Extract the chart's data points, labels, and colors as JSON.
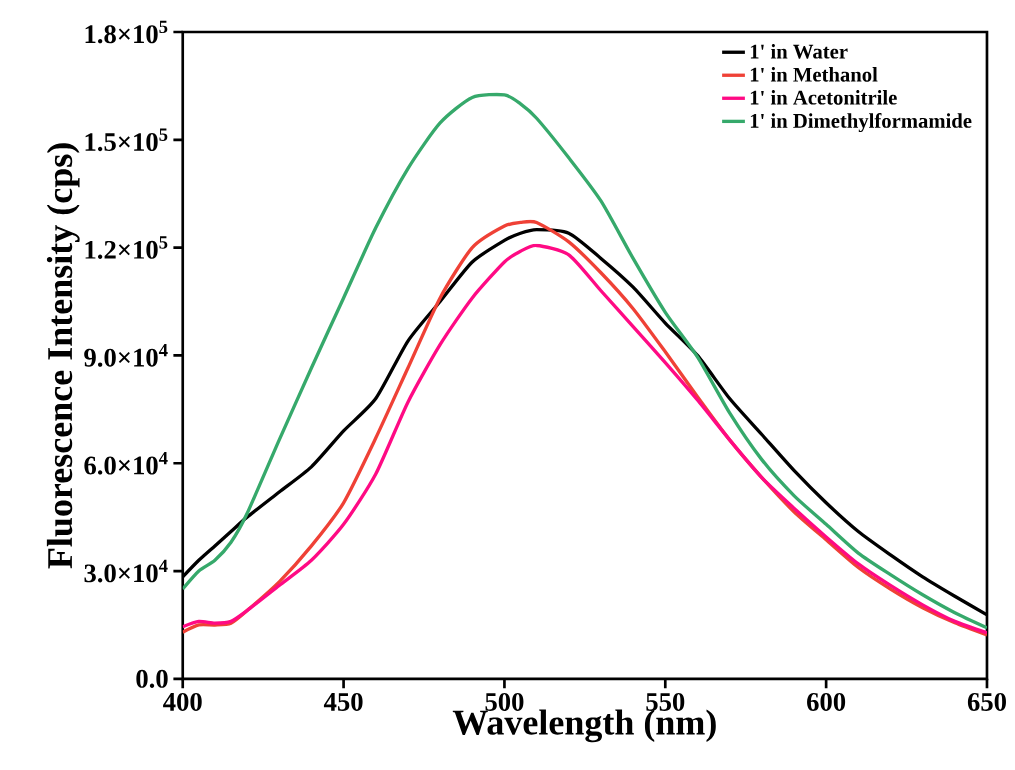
{
  "chart_data": {
    "type": "line",
    "xlabel": "Wavelength (nm)",
    "ylabel": "Fluorescence Intensity (cps)",
    "x": [
      400,
      405,
      410,
      415,
      420,
      430,
      440,
      450,
      460,
      470,
      480,
      490,
      500,
      505,
      510,
      520,
      530,
      540,
      550,
      560,
      570,
      580,
      590,
      600,
      610,
      620,
      630,
      640,
      650
    ],
    "series": [
      {
        "name": "1' in Water",
        "color": "#000000",
        "values": [
          28400,
          33000,
          37000,
          41000,
          45000,
          52000,
          59000,
          69000,
          78000,
          94000,
          105000,
          116000,
          122000,
          124000,
          125000,
          124000,
          117000,
          109000,
          99000,
          90000,
          78000,
          68000,
          58000,
          49000,
          41000,
          34500,
          28400,
          23000,
          17800
        ]
      },
      {
        "name": "1' in Methanol",
        "color": "#ef4136",
        "values": [
          13000,
          15000,
          15000,
          15500,
          19000,
          27000,
          37000,
          49000,
          67000,
          86500,
          106000,
          120000,
          126000,
          127000,
          127000,
          121600,
          113000,
          103000,
          91000,
          78500,
          66500,
          56000,
          46500,
          38700,
          31000,
          25000,
          19800,
          15600,
          12200
        ]
      },
      {
        "name": "1' in Acetonitrile",
        "color": "#ff0a84",
        "values": [
          14500,
          16000,
          15500,
          16000,
          19000,
          26000,
          33000,
          43000,
          57000,
          77000,
          93000,
          106000,
          116000,
          119000,
          120600,
          118000,
          108000,
          98000,
          88000,
          77600,
          66500,
          56000,
          47500,
          39500,
          32000,
          26000,
          20600,
          16000,
          12800
        ]
      },
      {
        "name": "1' in Dimethylformamide",
        "color": "#36a96b",
        "values": [
          25000,
          30000,
          33000,
          38000,
          46000,
          66500,
          86500,
          106000,
          125500,
          142000,
          154700,
          161800,
          162500,
          160000,
          156000,
          145000,
          133000,
          117000,
          102000,
          89600,
          74000,
          61000,
          51000,
          43000,
          35000,
          29000,
          23400,
          18400,
          14200
        ]
      }
    ],
    "xlim": [
      400,
      650
    ],
    "xticks": [
      400,
      450,
      500,
      550,
      600,
      650
    ],
    "ylim": [
      0,
      180000
    ],
    "yticks": [
      {
        "value": 0,
        "label": "0.0"
      },
      {
        "value": 30000,
        "label": "3.0×10$^{4}$"
      },
      {
        "value": 60000,
        "label": "6.0×10$^{4}$"
      },
      {
        "value": 90000,
        "label": "9.0×10$^{4}$"
      },
      {
        "value": 120000,
        "label": "1.2×10$^{5}$"
      },
      {
        "value": 150000,
        "label": "1.5×10$^{5}$"
      },
      {
        "value": 180000,
        "label": "1.8×10$^{5}$"
      }
    ],
    "legend": "top right",
    "grid": false,
    "marker": "none",
    "line_style": "solid"
  }
}
